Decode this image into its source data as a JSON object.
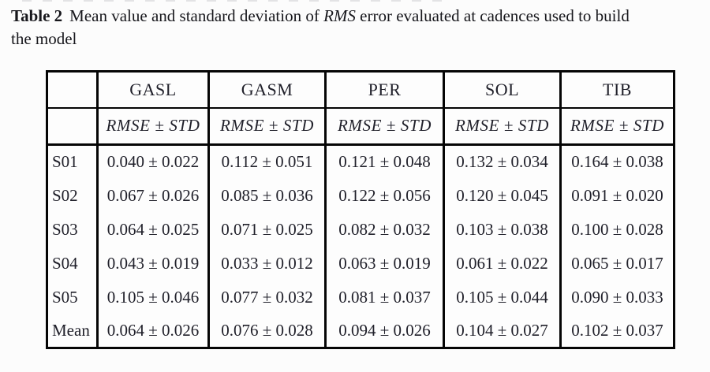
{
  "theme": {
    "page_background": "#fcfcfc",
    "table_border_color": "#050505",
    "text_color": "#20202a"
  },
  "caption": {
    "label": "Table 2",
    "line1_part1": "Mean value and standard deviation of ",
    "line1_italic": "RMS",
    "line1_part2": " error evaluated at cadences used to build",
    "line2": "the model"
  },
  "table": {
    "corner_blank": "",
    "columns": [
      "GASL",
      "GASM",
      "PER",
      "SOL",
      "TIB"
    ],
    "subheader": "RMSE ± STD",
    "rows": [
      {
        "label": "S01",
        "values": [
          "0.040 ± 0.022",
          "0.112 ± 0.051",
          "0.121 ± 0.048",
          "0.132 ± 0.034",
          "0.164 ± 0.038"
        ]
      },
      {
        "label": "S02",
        "values": [
          "0.067 ± 0.026",
          "0.085 ± 0.036",
          "0.122 ± 0.056",
          "0.120 ± 0.045",
          "0.091 ± 0.020"
        ]
      },
      {
        "label": "S03",
        "values": [
          "0.064 ± 0.025",
          "0.071 ± 0.025",
          "0.082 ± 0.032",
          "0.103 ± 0.038",
          "0.100 ± 0.028"
        ]
      },
      {
        "label": "S04",
        "values": [
          "0.043 ± 0.019",
          "0.033 ± 0.012",
          "0.063 ± 0.019",
          "0.061 ± 0.022",
          "0.065 ± 0.017"
        ]
      },
      {
        "label": "S05",
        "values": [
          "0.105 ± 0.046",
          "0.077 ± 0.032",
          "0.081 ± 0.037",
          "0.105 ± 0.044",
          "0.090 ± 0.033"
        ]
      },
      {
        "label": "Mean",
        "values": [
          "0.064 ± 0.026",
          "0.076 ± 0.028",
          "0.094 ± 0.026",
          "0.104 ± 0.027",
          "0.102 ± 0.037"
        ]
      }
    ]
  }
}
